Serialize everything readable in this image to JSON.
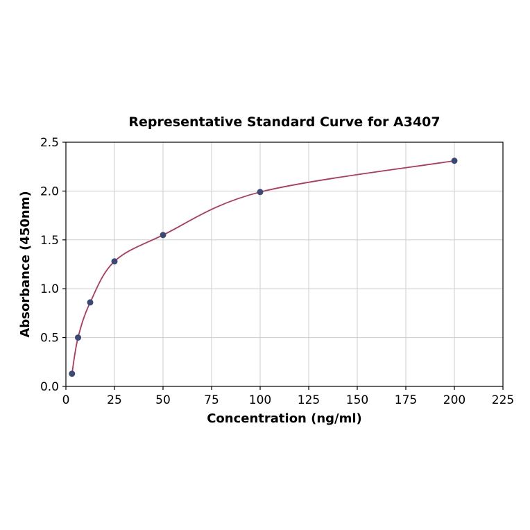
{
  "figure": {
    "title": "Representative Standard Curve for A3407"
  },
  "chart_data": {
    "type": "scatter",
    "title": "Representative Standard Curve for A3407",
    "xlabel": "Concentration (ng/ml)",
    "ylabel": "Absorbance (450nm)",
    "x": [
      3.125,
      6.25,
      12.5,
      25,
      50,
      100,
      200
    ],
    "y": [
      0.13,
      0.5,
      0.86,
      1.28,
      1.55,
      1.99,
      2.31
    ],
    "curve": "smooth saturation-fit line through the data points",
    "xlim": [
      0,
      225
    ],
    "ylim": [
      0,
      2.5
    ],
    "xticks": [
      0,
      25,
      50,
      75,
      100,
      125,
      150,
      175,
      200,
      225
    ],
    "xtick_labels": [
      "0",
      "25",
      "50",
      "75",
      "100",
      "125",
      "150",
      "175",
      "200",
      "225"
    ],
    "yticks": [
      0,
      0.5,
      1.0,
      1.5,
      2.0,
      2.5
    ],
    "ytick_labels": [
      "0.0",
      "0.5",
      "1.0",
      "1.5",
      "2.0",
      "2.5"
    ],
    "grid": true,
    "legend": "none",
    "colors": {
      "curve": "#b3365b",
      "marker": "#3b4a75",
      "grid": "#cccccc",
      "axis": "#000000",
      "background": "#ffffff"
    }
  }
}
